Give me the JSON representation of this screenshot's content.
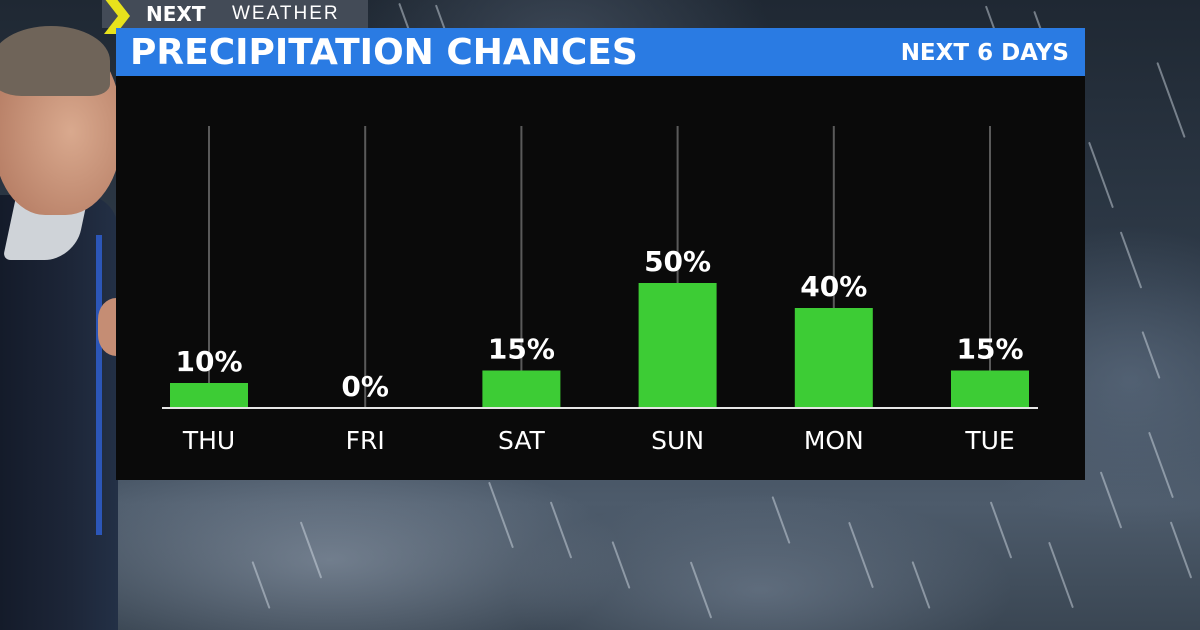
{
  "logo": {
    "brand": "NEXT",
    "section": "WEATHER"
  },
  "title_bar": {
    "title": "PRECIPITATION CHANCES",
    "subtitle": "NEXT 6 DAYS"
  },
  "chart_data": {
    "type": "bar",
    "title": "PRECIPITATION CHANCES",
    "subtitle": "NEXT 6 DAYS",
    "categories": [
      "THU",
      "FRI",
      "SAT",
      "SUN",
      "MON",
      "TUE"
    ],
    "values": [
      10,
      0,
      15,
      50,
      40,
      15
    ],
    "value_labels": [
      "10%",
      "0%",
      "15%",
      "50%",
      "40%",
      "15%"
    ],
    "xlabel": "",
    "ylabel": "",
    "ylim": [
      0,
      100
    ],
    "grid": false,
    "colors": {
      "bar": "#3dcc35",
      "background": "#0a0a0a",
      "title_bar": "#2a7be3",
      "text": "#ffffff"
    }
  }
}
